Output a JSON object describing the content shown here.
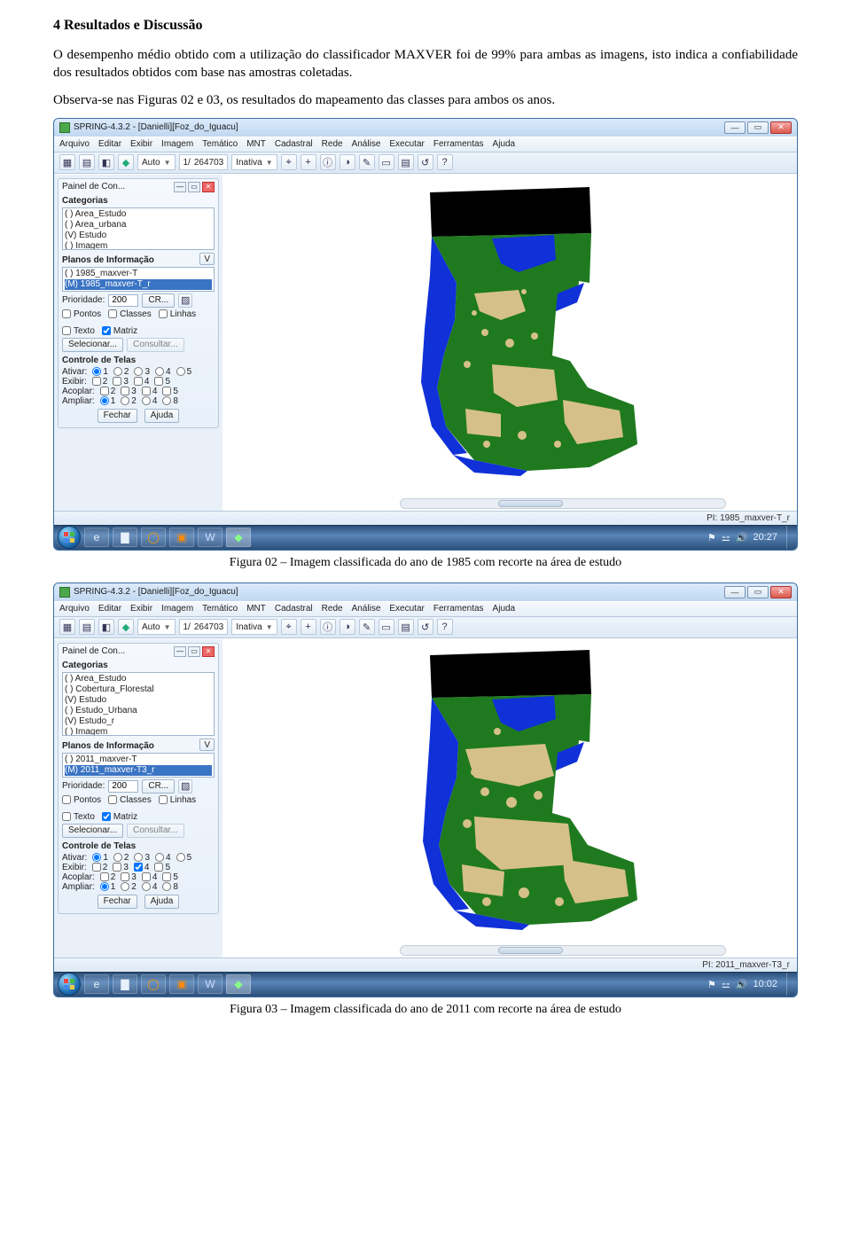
{
  "doc": {
    "section_heading": "4 Resultados e Discussão",
    "para1": "O desempenho médio obtido com a utilização do classificador MAXVER foi de 99% para ambas as imagens, isto indica a confiabilidade dos resultados obtidos com base nas amostras coletadas.",
    "para2": "Observa-se nas Figuras 02 e 03, os resultados do mapeamento das classes para ambos os anos.",
    "caption1": "Figura 02 – Imagem classificada do ano de 1985 com recorte na área de estudo",
    "caption2": "Figura 03 – Imagem classificada do ano de 2011 com recorte na área de estudo"
  },
  "colors": {
    "map_green": "#1f7a1f",
    "map_tan": "#d6c08a",
    "map_blue": "#1030d8",
    "map_black": "#000000",
    "map_bg": "#ffffff"
  },
  "app": {
    "menus": [
      "Arquivo",
      "Editar",
      "Exibir",
      "Imagem",
      "Temático",
      "MNT",
      "Cadastral",
      "Rede",
      "Análise",
      "Executar",
      "Ferramentas",
      "Ajuda"
    ],
    "toolbar": {
      "auto_label": "Auto",
      "scale_label": "1/",
      "scale_value": "264703",
      "cursor_mode": "Inativa"
    },
    "panel": {
      "title": "Painel de Con...",
      "categorias_label": "Categorias",
      "planos_label": "Planos de Informação",
      "v_label": "V",
      "prioridade_label": "Prioridade:",
      "prioridade_value": "200",
      "cr_label": "CR...",
      "chk_pontos": "Pontos",
      "chk_linhas": "Linhas",
      "chk_matriz": "Matriz",
      "chk_classes": "Classes",
      "chk_texto": "Texto",
      "btn_selecionar": "Selecionar...",
      "btn_consultar": "Consultar...",
      "controle_label": "Controle de Telas",
      "ativar_label": "Ativar:",
      "exibir_label": "Exibir:",
      "acoplar_label": "Acoplar:",
      "ampliar_label": "Ampliar:",
      "ampliar_opts": [
        "1",
        "2",
        "4",
        "8"
      ],
      "btn_fechar": "Fechar",
      "btn_ajuda": "Ajuda"
    }
  },
  "shot1": {
    "title": "SPRING-4.3.2 - [Danielli][Foz_do_Iguacu]",
    "categorias": [
      "( ) Area_Estudo",
      "( ) Area_urbana",
      "(V) Estudo",
      "( ) Imagem"
    ],
    "planos": [
      "( ) 1985_maxver-T",
      "(M) 1985_maxver-T_r"
    ],
    "planos_selected_index": 1,
    "status_right": "PI: 1985_maxver-T_r",
    "clock": "20:27"
  },
  "shot2": {
    "title": "SPRING-4.3.2 - [Danielli][Foz_do_Iguacu]",
    "categorias": [
      "( ) Area_Estudo",
      "( ) Cobertura_Florestal",
      "(V) Estudo",
      "( ) Estudo_Urbana",
      "(V) Estudo_r",
      "( ) Imagem"
    ],
    "planos": [
      "( ) 2011_maxver-T",
      "(M) 2011_maxver-T3_r"
    ],
    "planos_selected_index": 1,
    "status_right": "PI: 2011_maxver-T3_r",
    "clock": "10:02"
  }
}
